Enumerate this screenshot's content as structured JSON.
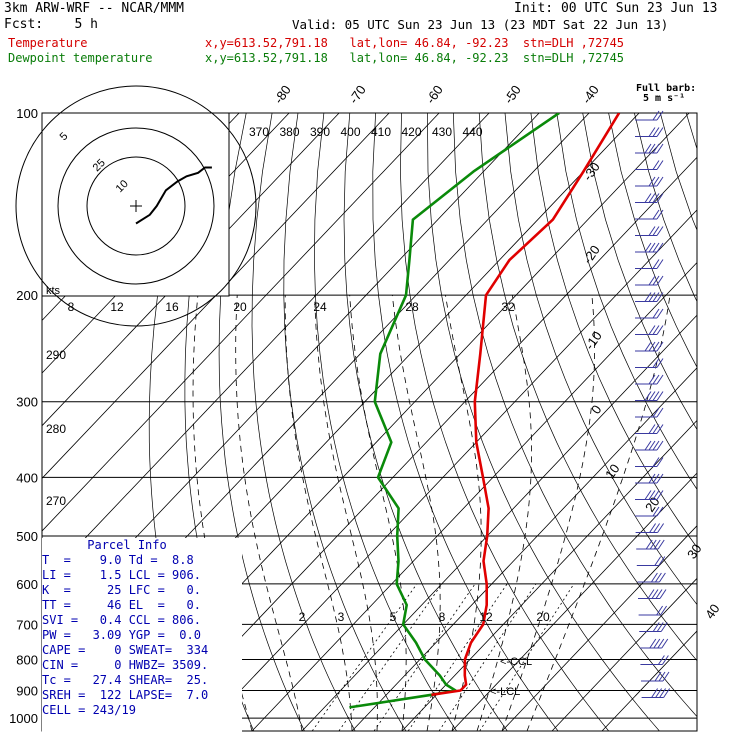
{
  "header": {
    "model": "3km ARW-WRF -- NCAR/MMM",
    "init": "Init: 00 UTC Sun 23 Jun 13",
    "fcst": "Fcst:    5 h",
    "valid": "Valid: 05 UTC Sun 23 Jun 13 (23 MDT Sat 22 Jun 13)",
    "temp_label": "Temperature",
    "temp_loc": "x,y=613.52,791.18   lat,lon= 46.84, -92.23  stn=DLH ,72745",
    "dew_label": "Dewpoint temperature",
    "dew_loc": "x,y=613.52,791.18   lat,lon= 46.84, -92.23  stn=DLH ,72745"
  },
  "barb_legend": {
    "line1": "Full barb:",
    "line2": "5 m s⁻¹"
  },
  "hodograph": {
    "axis_label": "kts",
    "ring_labels": [
      "5",
      "10",
      "25"
    ]
  },
  "chart_data": {
    "type": "skew-t",
    "pressure_levels": [
      100,
      200,
      300,
      400,
      500,
      600,
      700,
      800,
      900,
      1000
    ],
    "isotherm_labels": [
      "-80",
      "-70",
      "-60",
      "-50",
      "-40",
      "-30",
      "-20",
      "-10",
      "0",
      "10",
      "20",
      "30",
      "40"
    ],
    "theta_labels": [
      "370",
      "380",
      "390",
      "400",
      "410",
      "420",
      "430",
      "440"
    ],
    "theta_left_labels": [
      "290",
      "280",
      "270"
    ],
    "stability_labels": [
      "8",
      "12",
      "16",
      "20",
      "24",
      "28",
      "32"
    ],
    "mixing_ratio_labels": [
      "2",
      "3",
      "5",
      "8",
      "12",
      "20"
    ],
    "lcl_label": "LCL",
    "ccl_label": "CCL",
    "temperature": {
      "name": "Temperature",
      "color": "#e00000",
      "points": [
        {
          "p": 100,
          "t": -64
        },
        {
          "p": 125,
          "t": -60
        },
        {
          "p": 150,
          "t": -57
        },
        {
          "p": 175,
          "t": -58
        },
        {
          "p": 200,
          "t": -56
        },
        {
          "p": 250,
          "t": -46
        },
        {
          "p": 300,
          "t": -38
        },
        {
          "p": 350,
          "t": -30
        },
        {
          "p": 400,
          "t": -22
        },
        {
          "p": 450,
          "t": -15
        },
        {
          "p": 500,
          "t": -10
        },
        {
          "p": 550,
          "t": -6
        },
        {
          "p": 600,
          "t": -1
        },
        {
          "p": 650,
          "t": 3
        },
        {
          "p": 700,
          "t": 6
        },
        {
          "p": 750,
          "t": 7
        },
        {
          "p": 800,
          "t": 9
        },
        {
          "p": 850,
          "t": 12
        },
        {
          "p": 880,
          "t": 14
        },
        {
          "p": 900,
          "t": 14
        },
        {
          "p": 915,
          "t": 9
        }
      ]
    },
    "dewpoint": {
      "name": "Dewpoint temperature",
      "color": "#0a8a0a",
      "points": [
        {
          "p": 100,
          "t": -76
        },
        {
          "p": 125,
          "t": -82
        },
        {
          "p": 150,
          "t": -85
        },
        {
          "p": 175,
          "t": -78
        },
        {
          "p": 200,
          "t": -72
        },
        {
          "p": 250,
          "t": -66
        },
        {
          "p": 300,
          "t": -58
        },
        {
          "p": 350,
          "t": -47
        },
        {
          "p": 400,
          "t": -43
        },
        {
          "p": 450,
          "t": -33
        },
        {
          "p": 500,
          "t": -28
        },
        {
          "p": 550,
          "t": -23
        },
        {
          "p": 600,
          "t": -19
        },
        {
          "p": 650,
          "t": -13
        },
        {
          "p": 700,
          "t": -10
        },
        {
          "p": 750,
          "t": -4
        },
        {
          "p": 800,
          "t": 1
        },
        {
          "p": 850,
          "t": 7
        },
        {
          "p": 880,
          "t": 10
        },
        {
          "p": 900,
          "t": 13
        },
        {
          "p": 915,
          "t": 9
        },
        {
          "p": 960,
          "t": -5
        }
      ]
    },
    "hodograph_path_kts": [
      [
        0,
        -2
      ],
      [
        6,
        3
      ],
      [
        9,
        8
      ],
      [
        13,
        17
      ],
      [
        18,
        22
      ],
      [
        22,
        25
      ],
      [
        27,
        27
      ],
      [
        30,
        30
      ],
      [
        33,
        30
      ]
    ]
  },
  "parcel_info": {
    "title": "Parcel Info",
    "rows": [
      "T  =    9.0 Td =  8.8",
      "LI =    1.5 LCL = 906.",
      "K  =     25 LFC =   0.",
      "TT =     46 EL  =   0.",
      "SVI =   0.4 CCL = 806.",
      "PW =   3.09 YGP =  0.0",
      "CAPE =    0 SWEAT=  334",
      "CIN =     0 HWBZ= 3509.",
      "Tc =   27.4 SHEAR=  25.",
      "SREH =  122 LAPSE=  7.0",
      "CELL = 243/19"
    ]
  }
}
